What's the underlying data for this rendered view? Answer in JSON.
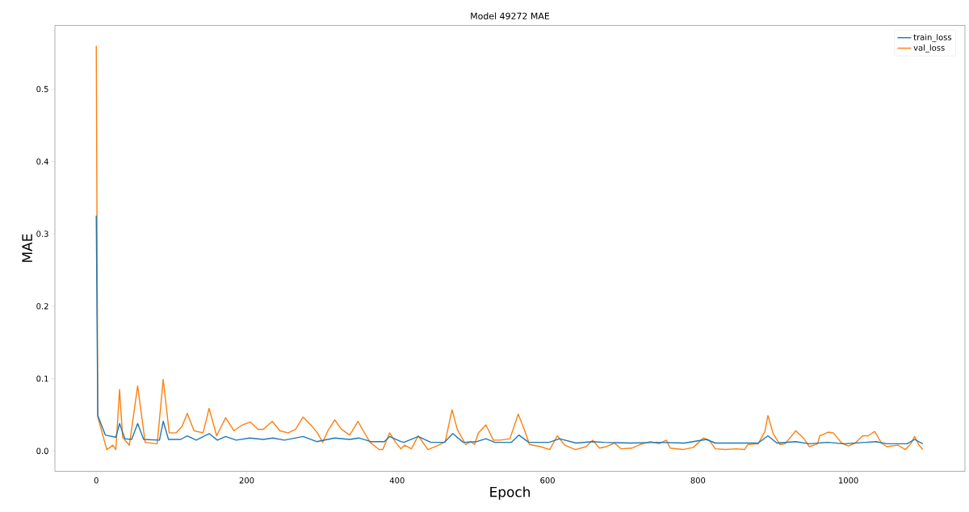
{
  "chart_data": {
    "type": "line",
    "title": "Model 49272 MAE",
    "xlabel": "Epoch",
    "ylabel": "MAE",
    "xlim": [
      -55,
      1155
    ],
    "ylim": [
      -0.028,
      0.588
    ],
    "xticks": [
      0,
      200,
      400,
      600,
      800,
      1000
    ],
    "yticks": [
      {
        "value": 0,
        "label": "0.0"
      },
      {
        "value": 0.1,
        "label": "0.1"
      },
      {
        "value": 0.2,
        "label": "0.2"
      },
      {
        "value": 0.3,
        "label": "0.3"
      },
      {
        "value": 0.4,
        "label": "0.4"
      },
      {
        "value": 0.5,
        "label": "0.5"
      }
    ],
    "legend": "top right",
    "series": [
      {
        "name": "train_loss",
        "color": "#1f77b4",
        "x": [
          0,
          2,
          12,
          26,
          31,
          38,
          47,
          55,
          63,
          84,
          89,
          96,
          112,
          121,
          133,
          150,
          161,
          172,
          186,
          204,
          222,
          235,
          250,
          275,
          293,
          317,
          337,
          349,
          365,
          383,
          390,
          405,
          409,
          428,
          445,
          463,
          474,
          488,
          506,
          518,
          530,
          552,
          562,
          575,
          602,
          616,
          638,
          660,
          675,
          711,
          747,
          782,
          811,
          823,
          848,
          880,
          893,
          905,
          930,
          948,
          973,
          994,
          1023,
          1037,
          1051,
          1078,
          1088,
          1099
        ],
        "values": [
          0.325,
          0.049,
          0.022,
          0.019,
          0.038,
          0.017,
          0.016,
          0.038,
          0.016,
          0.015,
          0.041,
          0.016,
          0.016,
          0.021,
          0.015,
          0.024,
          0.015,
          0.02,
          0.015,
          0.018,
          0.016,
          0.018,
          0.015,
          0.02,
          0.013,
          0.018,
          0.016,
          0.018,
          0.013,
          0.013,
          0.02,
          0.013,
          0.012,
          0.02,
          0.012,
          0.012,
          0.024,
          0.012,
          0.013,
          0.017,
          0.012,
          0.012,
          0.022,
          0.012,
          0.012,
          0.017,
          0.011,
          0.013,
          0.012,
          0.011,
          0.012,
          0.011,
          0.016,
          0.011,
          0.011,
          0.011,
          0.021,
          0.011,
          0.013,
          0.01,
          0.012,
          0.01,
          0.012,
          0.013,
          0.01,
          0.01,
          0.016,
          0.01
        ]
      },
      {
        "name": "val_loss",
        "color": "#ff7f0e",
        "x": [
          0,
          2,
          14,
          22,
          26,
          31,
          35,
          44,
          55,
          65,
          81,
          89,
          97,
          106,
          114,
          121,
          130,
          142,
          150,
          160,
          172,
          183,
          194,
          205,
          215,
          222,
          234,
          244,
          255,
          265,
          275,
          287,
          294,
          301,
          308,
          317,
          326,
          337,
          348,
          355,
          364,
          376,
          381,
          390,
          398,
          405,
          410,
          419,
          428,
          441,
          455,
          464,
          473,
          480,
          491,
          498,
          503,
          508,
          518,
          528,
          537,
          550,
          561,
          569,
          576,
          591,
          603,
          613,
          623,
          637,
          651,
          660,
          669,
          678,
          689,
          698,
          712,
          723,
          737,
          748,
          758,
          763,
          780,
          794,
          807,
          815,
          823,
          837,
          851,
          862,
          866,
          880,
          889,
          893,
          900,
          909,
          916,
          930,
          941,
          948,
          959,
          962,
          973,
          980,
          991,
          1000,
          1009,
          1019,
          1026,
          1035,
          1044,
          1051,
          1066,
          1076,
          1083,
          1088,
          1094,
          1099
        ],
        "values": [
          0.56,
          0.047,
          0.002,
          0.008,
          0.002,
          0.085,
          0.019,
          0.008,
          0.09,
          0.012,
          0.01,
          0.099,
          0.025,
          0.025,
          0.034,
          0.052,
          0.028,
          0.025,
          0.059,
          0.021,
          0.046,
          0.028,
          0.036,
          0.04,
          0.03,
          0.03,
          0.041,
          0.028,
          0.025,
          0.03,
          0.047,
          0.034,
          0.025,
          0.012,
          0.028,
          0.043,
          0.03,
          0.022,
          0.041,
          0.028,
          0.012,
          0.002,
          0.002,
          0.025,
          0.012,
          0.003,
          0.008,
          0.003,
          0.021,
          0.002,
          0.008,
          0.013,
          0.057,
          0.03,
          0.009,
          0.013,
          0.009,
          0.025,
          0.036,
          0.015,
          0.015,
          0.017,
          0.051,
          0.03,
          0.009,
          0.006,
          0.002,
          0.021,
          0.008,
          0.002,
          0.006,
          0.015,
          0.004,
          0.006,
          0.011,
          0.003,
          0.004,
          0.009,
          0.013,
          0.01,
          0.015,
          0.004,
          0.002,
          0.005,
          0.018,
          0.015,
          0.003,
          0.002,
          0.003,
          0.002,
          0.009,
          0.01,
          0.027,
          0.049,
          0.024,
          0.009,
          0.01,
          0.028,
          0.017,
          0.006,
          0.01,
          0.021,
          0.026,
          0.025,
          0.011,
          0.007,
          0.011,
          0.021,
          0.021,
          0.027,
          0.011,
          0.006,
          0.008,
          0.002,
          0.01,
          0.02,
          0.008,
          0.002
        ]
      }
    ]
  }
}
